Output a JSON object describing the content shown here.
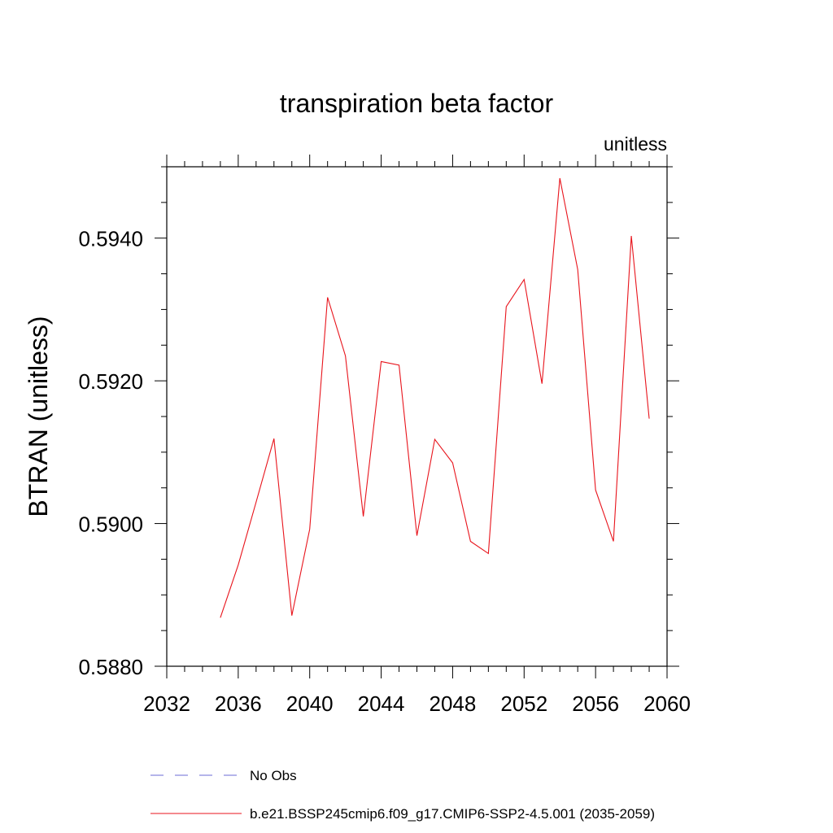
{
  "chart_data": {
    "type": "line",
    "title": "transpiration beta factor",
    "units_label": "unitless",
    "ylabel": "BTRAN  (unitless)",
    "xlabel": "",
    "xlim": [
      2032,
      2060
    ],
    "ylim": [
      0.588,
      0.595
    ],
    "x_ticks": [
      2032,
      2036,
      2040,
      2044,
      2048,
      2052,
      2056,
      2060
    ],
    "x_tick_labels": [
      "2032",
      "2036",
      "2040",
      "2044",
      "2048",
      "2052",
      "2056",
      "2060"
    ],
    "y_ticks": [
      0.588,
      0.59,
      0.592,
      0.594
    ],
    "y_tick_labels": [
      "0.5880",
      "0.5900",
      "0.5920",
      "0.5940"
    ],
    "grid": false,
    "series": [
      {
        "name": "b.e21.BSSP245cmip6.f09_g17.CMIP6-SSP2-4.5.001 (2035-2059)",
        "color": "#e8141c",
        "x": [
          2035,
          2036,
          2037,
          2038,
          2039,
          2040,
          2041,
          2042,
          2043,
          2044,
          2045,
          2046,
          2047,
          2048,
          2049,
          2050,
          2051,
          2052,
          2053,
          2054,
          2055,
          2056,
          2057,
          2058,
          2059
        ],
        "y": [
          0.58868,
          0.58942,
          0.5903,
          0.59119,
          0.58871,
          0.58992,
          0.59317,
          0.59235,
          0.5901,
          0.59227,
          0.59222,
          0.58983,
          0.59118,
          0.59085,
          0.58975,
          0.58958,
          0.59304,
          0.59342,
          0.59196,
          0.59484,
          0.59356,
          0.59047,
          0.58975,
          0.59403,
          0.59147
        ]
      }
    ],
    "legend": [
      {
        "label": "No Obs",
        "style": "dashed",
        "color": "#6b6bd6"
      },
      {
        "label": "b.e21.BSSP245cmip6.f09_g17.CMIP6-SSP2-4.5.001 (2035-2059)",
        "style": "solid",
        "color": "#e8141c"
      }
    ],
    "legend_placement": "bottom"
  }
}
